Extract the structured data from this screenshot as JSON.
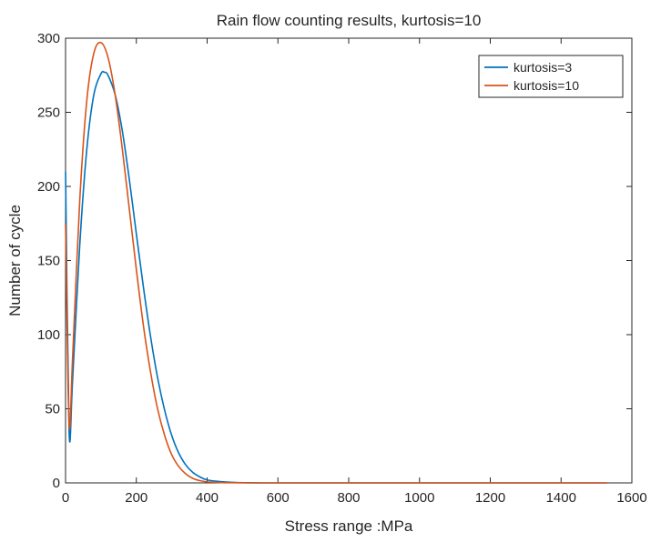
{
  "chart_data": {
    "type": "line",
    "title": "Rain flow counting results, kurtosis=10",
    "xlabel": "Stress range :MPa",
    "ylabel": "Number of cycle",
    "xlim": [
      0,
      1600
    ],
    "ylim": [
      0,
      300
    ],
    "xticks": [
      0,
      200,
      400,
      600,
      800,
      1000,
      1200,
      1400,
      1600
    ],
    "yticks": [
      0,
      50,
      100,
      150,
      200,
      250,
      300
    ],
    "xtick_labels": [
      "0",
      "200",
      "400",
      "600",
      "800",
      "1000",
      "1200",
      "1400",
      "1600"
    ],
    "ytick_labels": [
      "0",
      "50",
      "100",
      "150",
      "200",
      "250",
      "300"
    ],
    "grid": false,
    "legend_position": "top-right",
    "series": [
      {
        "name": "kurtosis=3",
        "color": "#0072BD",
        "x": [
          0,
          10,
          20,
          40,
          60,
          80,
          100,
          110,
          120,
          140,
          160,
          180,
          200,
          220,
          240,
          260,
          280,
          300,
          320,
          340,
          360,
          380,
          400,
          440,
          480,
          520,
          560,
          600,
          800,
          1000,
          1200,
          1400,
          1530
        ],
        "y": [
          210,
          35,
          70,
          160,
          225,
          262,
          276,
          277,
          275,
          262,
          238,
          205,
          168,
          132,
          99,
          71,
          49,
          32,
          20,
          12,
          7,
          4,
          2,
          0.8,
          0.3,
          0.1,
          0,
          0,
          0,
          0,
          0,
          0,
          0
        ]
      },
      {
        "name": "kurtosis=10",
        "color": "#D95319",
        "x": [
          0,
          10,
          20,
          40,
          60,
          80,
          100,
          120,
          140,
          160,
          180,
          200,
          220,
          240,
          260,
          280,
          300,
          320,
          340,
          360,
          380,
          400,
          440,
          480,
          520,
          560,
          600,
          800,
          1000,
          1200,
          1400,
          1530
        ],
        "y": [
          175,
          40,
          85,
          190,
          258,
          290,
          297,
          287,
          262,
          226,
          185,
          144,
          106,
          75,
          50,
          32,
          19,
          11,
          6,
          3,
          1.5,
          0.7,
          0.2,
          0.1,
          0,
          0,
          0,
          0,
          0,
          0,
          0,
          0
        ]
      }
    ]
  }
}
